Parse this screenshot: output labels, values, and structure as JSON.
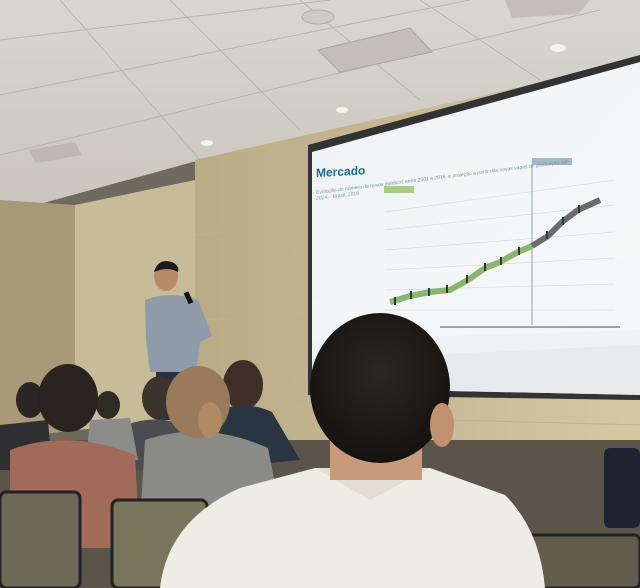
{
  "slide": {
    "title": "Mercado",
    "subtitle": "Evolução do número de novos médicos entre 2001 e 2016, e projeção a partir das novas vagas de graduação até",
    "subtitle2": "2024 – Brasil, 2016"
  },
  "colors": {
    "wall": "#d8cba8",
    "ceiling": "#e8e4dc",
    "screen": "#f2f5f7",
    "slide_title": "#1e6a8a",
    "line_series": "#8ab56a"
  }
}
